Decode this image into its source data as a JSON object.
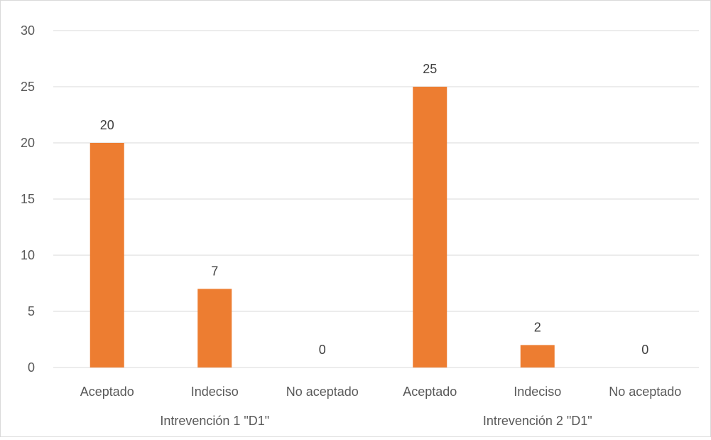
{
  "chart_data": {
    "type": "bar",
    "title": "",
    "xlabel": "",
    "ylabel": "",
    "ylim": [
      0,
      30
    ],
    "yticks": [
      0,
      5,
      10,
      15,
      20,
      25,
      30
    ],
    "grid": true,
    "legend": "none",
    "groups": [
      {
        "label": "Intrevención 1 \"D1\"",
        "categories": [
          "Aceptado",
          "Indeciso",
          "No aceptado"
        ],
        "values": [
          20,
          7,
          0
        ]
      },
      {
        "label": "Intrevención 2 \"D1\"",
        "categories": [
          "Aceptado",
          "Indeciso",
          "No aceptado"
        ],
        "values": [
          25,
          2,
          0
        ]
      }
    ],
    "categories": [
      "Aceptado",
      "Indeciso",
      "No aceptado",
      "Aceptado",
      "Indeciso",
      "No aceptado"
    ],
    "values": [
      20,
      7,
      0,
      25,
      2,
      0
    ],
    "bar_color": "#ED7D31",
    "gridline_color": "#D9D9D9",
    "data_labels": true
  }
}
